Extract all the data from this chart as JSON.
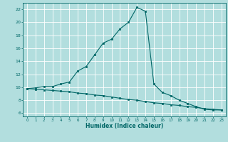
{
  "xlabel": "Humidex (Indice chaleur)",
  "background_color": "#b2dede",
  "grid_color": "#ffffff",
  "line_color": "#006666",
  "x_upper": [
    0,
    1,
    2,
    3,
    4,
    5,
    6,
    7,
    8,
    9,
    10,
    11,
    12,
    13,
    14,
    15,
    16,
    17,
    18,
    19,
    20,
    21,
    22,
    23
  ],
  "y_upper": [
    9.8,
    9.9,
    10.1,
    10.1,
    10.5,
    10.8,
    12.5,
    13.2,
    15.0,
    16.8,
    17.4,
    19.0,
    20.0,
    22.3,
    21.7,
    10.5,
    9.2,
    8.7,
    8.0,
    7.5,
    7.0,
    6.6,
    6.5,
    6.5
  ],
  "x_lower": [
    0,
    1,
    2,
    3,
    4,
    5,
    6,
    7,
    8,
    9,
    10,
    11,
    12,
    13,
    14,
    15,
    16,
    17,
    18,
    19,
    20,
    21,
    22,
    23
  ],
  "y_lower": [
    9.8,
    9.7,
    9.6,
    9.5,
    9.4,
    9.3,
    9.1,
    9.0,
    8.8,
    8.7,
    8.5,
    8.3,
    8.1,
    8.0,
    7.8,
    7.6,
    7.5,
    7.3,
    7.2,
    7.0,
    6.9,
    6.7,
    6.6,
    6.5
  ],
  "xlim": [
    -0.5,
    23.5
  ],
  "ylim": [
    5.5,
    23.0
  ],
  "yticks": [
    6,
    8,
    10,
    12,
    14,
    16,
    18,
    20,
    22
  ],
  "xticks": [
    0,
    1,
    2,
    3,
    4,
    5,
    6,
    7,
    8,
    9,
    10,
    11,
    12,
    13,
    14,
    15,
    16,
    17,
    18,
    19,
    20,
    21,
    22,
    23
  ]
}
